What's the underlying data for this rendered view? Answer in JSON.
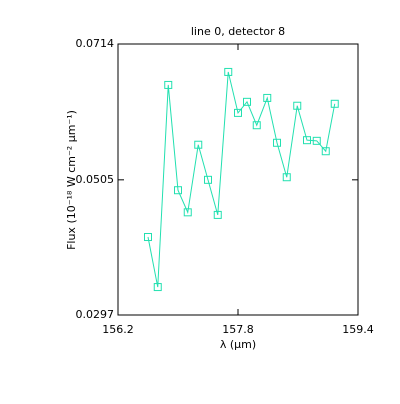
{
  "chart_data": {
    "type": "line",
    "title": "line 0, detector 8",
    "xlabel": "λ (μm)",
    "ylabel": "Flux (10⁻¹⁸ W cm⁻² μm⁻¹)",
    "x": [
      156.6,
      156.73,
      156.87,
      157.0,
      157.13,
      157.27,
      157.4,
      157.53,
      157.67,
      157.8,
      157.92,
      158.05,
      158.19,
      158.32,
      158.45,
      158.59,
      158.72,
      158.85,
      158.97,
      159.09
    ],
    "series": [
      {
        "name": "line 0, detector 8",
        "color": "#22e0b0",
        "values": [
          0.0417,
          0.034,
          0.0651,
          0.0489,
          0.0455,
          0.0559,
          0.0505,
          0.0451,
          0.0671,
          0.0608,
          0.0625,
          0.0589,
          0.0631,
          0.0562,
          0.0509,
          0.0619,
          0.0566,
          0.0565,
          0.0549,
          0.0622
        ]
      }
    ],
    "xlim": [
      156.2,
      159.4
    ],
    "xticks": [
      156.2,
      157.8,
      159.4
    ],
    "ylim": [
      0.0297,
      0.0714
    ],
    "yticks": [
      0.0297,
      0.0505,
      0.0714
    ]
  }
}
